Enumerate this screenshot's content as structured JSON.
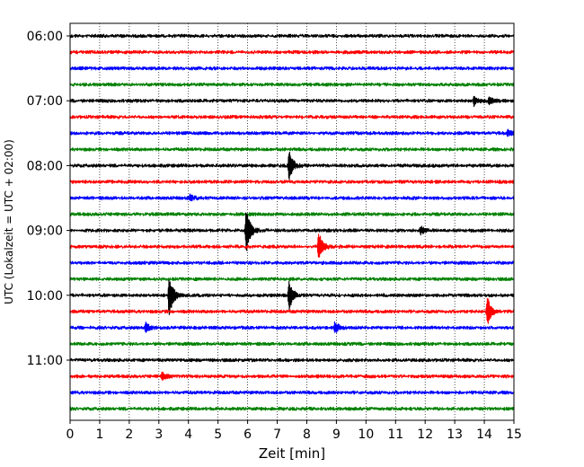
{
  "chart_data": {
    "type": "line",
    "xlabel": "Zeit  [min]",
    "ylabel": "UTC (Lokalzeit = UTC + 02:00)",
    "xlim": [
      0,
      15
    ],
    "x_ticks": [
      "0",
      "1",
      "2",
      "3",
      "4",
      "5",
      "6",
      "7",
      "8",
      "9",
      "10",
      "11",
      "12",
      "13",
      "14",
      "15"
    ],
    "y_tick_labels": [
      "06:00",
      "07:00",
      "08:00",
      "09:00",
      "10:00",
      "11:00"
    ],
    "grid": "vertical dotted lines at each minute",
    "series_colors": [
      "#000000",
      "#ff0000",
      "#0000ff",
      "#008000"
    ],
    "traces": [
      {
        "start": "06:00",
        "color": "#000000",
        "events": []
      },
      {
        "start": "06:15",
        "color": "#ff0000",
        "events": []
      },
      {
        "start": "06:30",
        "color": "#0000ff",
        "events": []
      },
      {
        "start": "06:45",
        "color": "#008000",
        "events": []
      },
      {
        "start": "07:00",
        "color": "#000000",
        "events": [
          {
            "t": 13.65,
            "amp": 0.6
          },
          {
            "t": 14.15,
            "amp": 0.5
          }
        ]
      },
      {
        "start": "07:15",
        "color": "#ff0000",
        "events": []
      },
      {
        "start": "07:30",
        "color": "#0000ff",
        "events": [
          {
            "t": 14.8,
            "amp": 0.4
          }
        ]
      },
      {
        "start": "07:45",
        "color": "#008000",
        "events": []
      },
      {
        "start": "08:00",
        "color": "#000000",
        "events": [
          {
            "t": 7.4,
            "amp": 1.9
          }
        ]
      },
      {
        "start": "08:15",
        "color": "#ff0000",
        "events": []
      },
      {
        "start": "08:30",
        "color": "#0000ff",
        "events": [
          {
            "t": 4.05,
            "amp": 0.4
          }
        ]
      },
      {
        "start": "08:45",
        "color": "#008000",
        "events": []
      },
      {
        "start": "09:00",
        "color": "#000000",
        "events": [
          {
            "t": 5.95,
            "amp": 2.9
          },
          {
            "t": 11.85,
            "amp": 0.5
          }
        ]
      },
      {
        "start": "09:15",
        "color": "#ff0000",
        "events": [
          {
            "t": 8.4,
            "amp": 1.9
          }
        ]
      },
      {
        "start": "09:30",
        "color": "#0000ff",
        "events": []
      },
      {
        "start": "09:45",
        "color": "#008000",
        "events": []
      },
      {
        "start": "10:00",
        "color": "#000000",
        "events": [
          {
            "t": 3.35,
            "amp": 2.6
          },
          {
            "t": 7.4,
            "amp": 1.9
          }
        ]
      },
      {
        "start": "10:15",
        "color": "#ff0000",
        "events": [
          {
            "t": 14.1,
            "amp": 1.9
          }
        ]
      },
      {
        "start": "10:30",
        "color": "#0000ff",
        "events": [
          {
            "t": 2.55,
            "amp": 0.6
          },
          {
            "t": 8.95,
            "amp": 0.7
          }
        ]
      },
      {
        "start": "10:45",
        "color": "#008000",
        "events": []
      },
      {
        "start": "11:00",
        "color": "#000000",
        "events": []
      },
      {
        "start": "11:15",
        "color": "#ff0000",
        "events": [
          {
            "t": 3.1,
            "amp": 0.5
          }
        ]
      },
      {
        "start": "11:30",
        "color": "#0000ff",
        "events": []
      },
      {
        "start": "11:45",
        "color": "#008000",
        "events": []
      }
    ]
  }
}
